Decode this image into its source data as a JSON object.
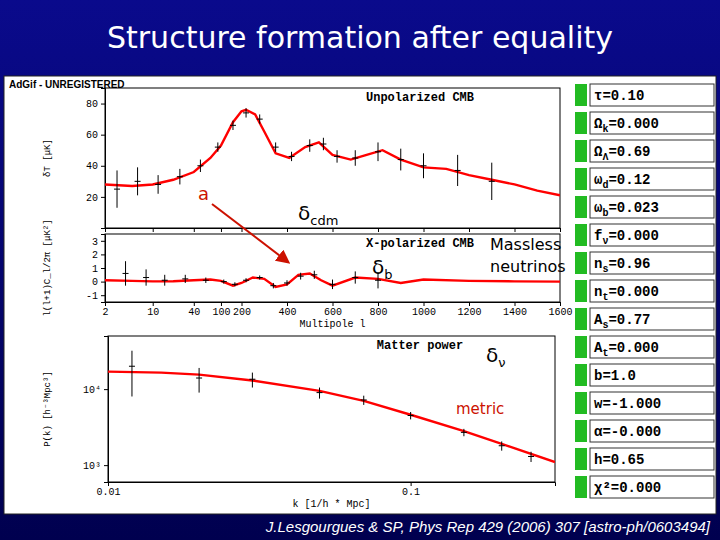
{
  "slide": {
    "title": "Structure formation after equality",
    "citation": "J.Lesgourgues & SP, Phys Rep 429 (2006) 307 [astro-ph/0603494]",
    "watermark": "AdGif - UNREGISTERED",
    "parameters": [
      {
        "symbol": "τ",
        "rest": "=0.10"
      },
      {
        "symbol": "Ω",
        "sub": "k",
        "rest": "=0.000"
      },
      {
        "symbol": "Ω",
        "sub": "Λ",
        "rest": "=0.69"
      },
      {
        "symbol": "ω",
        "sub": "d",
        "rest": "=0.12"
      },
      {
        "symbol": "ω",
        "sub": "b",
        "rest": "=0.023"
      },
      {
        "symbol": "f",
        "sub": "ν",
        "rest": "=0.000"
      },
      {
        "symbol": "n",
        "sub": "s",
        "rest": "=0.96"
      },
      {
        "symbol": "n",
        "sub": "t",
        "rest": "=0.000"
      },
      {
        "symbol": "A",
        "sub": "s",
        "rest": "=0.77"
      },
      {
        "symbol": "A",
        "sub": "t",
        "rest": "=0.000"
      },
      {
        "symbol": "b",
        "rest": "=1.0"
      },
      {
        "symbol": "w",
        "rest": "=-1.000"
      },
      {
        "symbol": "α",
        "rest": "=-0.000"
      },
      {
        "symbol": "h",
        "rest": "=0.65"
      },
      {
        "symbol": "χ²",
        "rest": "=0.000"
      }
    ],
    "annotations": [
      {
        "text": "a",
        "color": "#cc1100"
      },
      {
        "text": "δ",
        "sub": "cdm",
        "color": "#000000"
      },
      {
        "text": "δ",
        "sub": "b",
        "color": "#000000"
      },
      {
        "text": "Massless",
        "color": "#000000"
      },
      {
        "text": "neutrinos",
        "color": "#000000"
      },
      {
        "text": "δ",
        "sub": "ν",
        "color": "#000000"
      },
      {
        "text": "metric",
        "color": "#cc1100"
      }
    ]
  },
  "chart_data": [
    {
      "type": "line",
      "title": "Unpolarized CMB",
      "y_label": "δT [μK]",
      "xlim": [
        2,
        1600
      ],
      "xticks": [
        2,
        10,
        40,
        100,
        200,
        400,
        600,
        800,
        1000,
        1200,
        1400,
        1600
      ],
      "ylim": [
        0,
        90
      ],
      "yticks": [
        20,
        40,
        60,
        80
      ],
      "tick_labels": "y",
      "series": [
        {
          "type": "line",
          "color": "#ff0000",
          "x": [
            2,
            5,
            10,
            20,
            40,
            70,
            100,
            150,
            200,
            220,
            260,
            300,
            350,
            410,
            480,
            540,
            600,
            680,
            750,
            820,
            900,
            1000,
            1100,
            1200,
            1300,
            1400,
            1500,
            1600
          ],
          "values": [
            28,
            27,
            28,
            31,
            36,
            45,
            53,
            68,
            75,
            76,
            73,
            62,
            48,
            45,
            52,
            55,
            47,
            44,
            47,
            50,
            44,
            39,
            38,
            34,
            31,
            28,
            24,
            21
          ]
        },
        {
          "type": "scatter",
          "marker": "cross",
          "color": "#000000",
          "x": [
            3,
            6,
            12,
            25,
            50,
            90,
            150,
            220,
            280,
            350,
            420,
            500,
            560,
            620,
            700,
            800,
            900,
            1000,
            1150,
            1300
          ],
          "values": [
            25,
            30,
            28,
            33,
            40,
            52,
            66,
            74,
            70,
            52,
            46,
            53,
            54,
            46,
            45,
            49,
            44,
            40,
            37,
            30
          ],
          "error": [
            12,
            9,
            6,
            5,
            4,
            3,
            3,
            3,
            3,
            3,
            3,
            4,
            4,
            4,
            5,
            6,
            7,
            8,
            10,
            12
          ]
        }
      ]
    },
    {
      "type": "line",
      "title": "X-polarized CMB",
      "x_label": "Multipole l",
      "y_label": "l(l+1)C_l/2π [μK²]",
      "xlim": [
        2,
        1600
      ],
      "xticks": [
        2,
        10,
        40,
        100,
        200,
        400,
        600,
        800,
        1000,
        1200,
        1400,
        1600
      ],
      "ylim": [
        -1.5,
        3.5
      ],
      "yticks": [
        -1,
        0,
        1,
        2,
        3
      ],
      "series": [
        {
          "type": "line",
          "color": "#ff0000",
          "x": [
            2,
            5,
            10,
            20,
            40,
            70,
            100,
            150,
            200,
            250,
            300,
            350,
            400,
            450,
            500,
            550,
            600,
            700,
            800,
            900,
            1000,
            1200,
            1400,
            1600
          ],
          "values": [
            0.1,
            0.05,
            0.02,
            0.03,
            0.1,
            0.15,
            0.05,
            -0.3,
            -0.1,
            0.3,
            0.2,
            -0.4,
            -0.2,
            0.5,
            0.6,
            0.1,
            -0.3,
            0.3,
            0.2,
            -0.1,
            0.15,
            0.05,
            0.02,
            0
          ]
        },
        {
          "type": "scatter",
          "marker": "cross",
          "color": "#000000",
          "x": [
            4,
            8,
            15,
            30,
            60,
            110,
            160,
            220,
            280,
            340,
            400,
            460,
            520,
            600,
            700,
            800
          ],
          "values": [
            0.6,
            0.3,
            0.1,
            0.2,
            0.1,
            0,
            -0.2,
            0.1,
            0.3,
            -0.3,
            -0.1,
            0.4,
            0.5,
            -0.2,
            0.3,
            0.1
          ],
          "error": [
            0.9,
            0.6,
            0.4,
            0.3,
            0.2,
            0.15,
            0.15,
            0.15,
            0.15,
            0.2,
            0.2,
            0.25,
            0.3,
            0.35,
            0.45,
            0.6
          ]
        }
      ]
    },
    {
      "type": "line",
      "title": "Matter power",
      "log": true,
      "x_label": "k [1/h * Mpc]",
      "y_label": "P(k) [h⁻³Mpc³]",
      "xlim": [
        0.01,
        0.3
      ],
      "xticks": [
        0.01,
        0.1
      ],
      "ylim": [
        600,
        50000
      ],
      "yticks": [
        {
          "value": 1000,
          "label": "10³"
        },
        {
          "value": 10000,
          "label": "10⁴"
        }
      ],
      "series": [
        {
          "type": "line",
          "color": "#ff0000",
          "x": [
            0.01,
            0.015,
            0.02,
            0.03,
            0.05,
            0.07,
            0.1,
            0.15,
            0.2,
            0.3
          ],
          "values": [
            17000,
            16500,
            15500,
            13000,
            9500,
            7000,
            4600,
            2800,
            1900,
            1100
          ]
        },
        {
          "type": "scatter",
          "marker": "cross",
          "color": "#000000",
          "x": [
            0.012,
            0.02,
            0.03,
            0.05,
            0.07,
            0.1,
            0.15,
            0.2,
            0.25
          ],
          "values": [
            20000,
            14000,
            13500,
            9000,
            7200,
            4500,
            2700,
            1800,
            1300
          ],
          "error": [
            12000,
            5000,
            3000,
            1500,
            1000,
            500,
            300,
            250,
            200
          ]
        }
      ]
    }
  ]
}
